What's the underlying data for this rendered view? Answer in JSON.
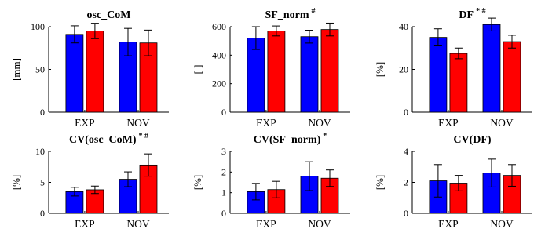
{
  "chart_data": [
    {
      "type": "bar",
      "title": "osc_CoM",
      "title_sup": "",
      "ylabel": "[mm]",
      "ylim": [
        0,
        100
      ],
      "yticks": [
        0,
        50,
        100
      ],
      "categories": [
        "EXP",
        "NOV"
      ],
      "series": [
        {
          "color": "#0000ff",
          "values": [
            91,
            82
          ],
          "errors": [
            10,
            16
          ]
        },
        {
          "color": "#ff0000",
          "values": [
            95,
            81
          ],
          "errors": [
            9,
            15
          ]
        }
      ]
    },
    {
      "type": "bar",
      "title": "SF_norm",
      "title_sup": "#",
      "ylabel": "[ ]",
      "ylim": [
        0,
        600
      ],
      "yticks": [
        0,
        200,
        400,
        600
      ],
      "categories": [
        "EXP",
        "NOV"
      ],
      "series": [
        {
          "color": "#0000ff",
          "values": [
            520,
            530
          ],
          "errors": [
            80,
            45
          ]
        },
        {
          "color": "#ff0000",
          "values": [
            570,
            580
          ],
          "errors": [
            35,
            45
          ]
        }
      ]
    },
    {
      "type": "bar",
      "title": "DF",
      "title_sup": "* #",
      "ylabel": "[%]",
      "ylim": [
        0,
        40
      ],
      "yticks": [
        0,
        20,
        40
      ],
      "categories": [
        "EXP",
        "NOV"
      ],
      "series": [
        {
          "color": "#0000ff",
          "values": [
            35,
            41
          ],
          "errors": [
            4,
            3
          ]
        },
        {
          "color": "#ff0000",
          "values": [
            27.5,
            33
          ],
          "errors": [
            2.5,
            3
          ]
        }
      ]
    },
    {
      "type": "bar",
      "title": "CV(osc_CoM)",
      "title_sup": "* #",
      "ylabel": "[%]",
      "ylim": [
        0,
        10
      ],
      "yticks": [
        0,
        5,
        10
      ],
      "categories": [
        "EXP",
        "NOV"
      ],
      "series": [
        {
          "color": "#0000ff",
          "values": [
            3.5,
            5.5
          ],
          "errors": [
            0.7,
            1.2
          ]
        },
        {
          "color": "#ff0000",
          "values": [
            3.8,
            7.8
          ],
          "errors": [
            0.6,
            1.8
          ]
        }
      ]
    },
    {
      "type": "bar",
      "title": "CV(SF_norm)",
      "title_sup": "*",
      "ylabel": "[%]",
      "ylim": [
        0,
        3
      ],
      "yticks": [
        0,
        1,
        2,
        3
      ],
      "categories": [
        "EXP",
        "NOV"
      ],
      "series": [
        {
          "color": "#0000ff",
          "values": [
            1.05,
            1.8
          ],
          "errors": [
            0.4,
            0.7
          ]
        },
        {
          "color": "#ff0000",
          "values": [
            1.15,
            1.7
          ],
          "errors": [
            0.4,
            0.4
          ]
        }
      ]
    },
    {
      "type": "bar",
      "title": "CV(DF)",
      "title_sup": "",
      "ylabel": "[%]",
      "ylim": [
        0,
        4
      ],
      "yticks": [
        0,
        2,
        4
      ],
      "categories": [
        "EXP",
        "NOV"
      ],
      "series": [
        {
          "color": "#0000ff",
          "values": [
            2.1,
            2.6
          ],
          "errors": [
            1.05,
            0.9
          ]
        },
        {
          "color": "#ff0000",
          "values": [
            1.95,
            2.45
          ],
          "errors": [
            0.5,
            0.7
          ]
        }
      ]
    }
  ]
}
